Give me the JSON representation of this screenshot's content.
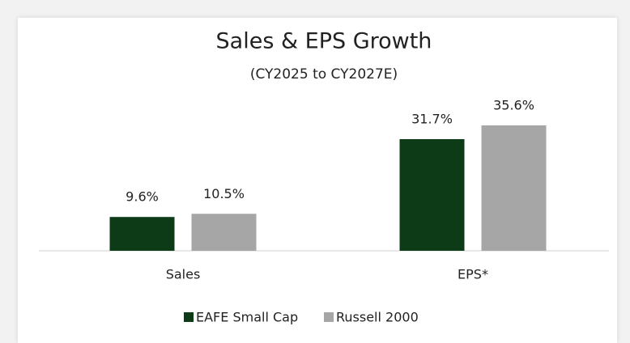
{
  "chart_data": {
    "type": "bar",
    "title": "Sales & EPS Growth",
    "subtitle": "(CY2025 to CY2027E)",
    "categories": [
      "Sales",
      "EPS*"
    ],
    "series": [
      {
        "name": "EAFE Small Cap",
        "color": "#0d3b17",
        "values": [
          9.6,
          31.7
        ],
        "value_labels": [
          "9.6%",
          "31.7%"
        ]
      },
      {
        "name": "Russell 2000",
        "color": "#a6a6a6",
        "values": [
          10.5,
          35.6
        ],
        "value_labels": [
          "10.5%",
          "35.6%"
        ]
      }
    ]
  }
}
